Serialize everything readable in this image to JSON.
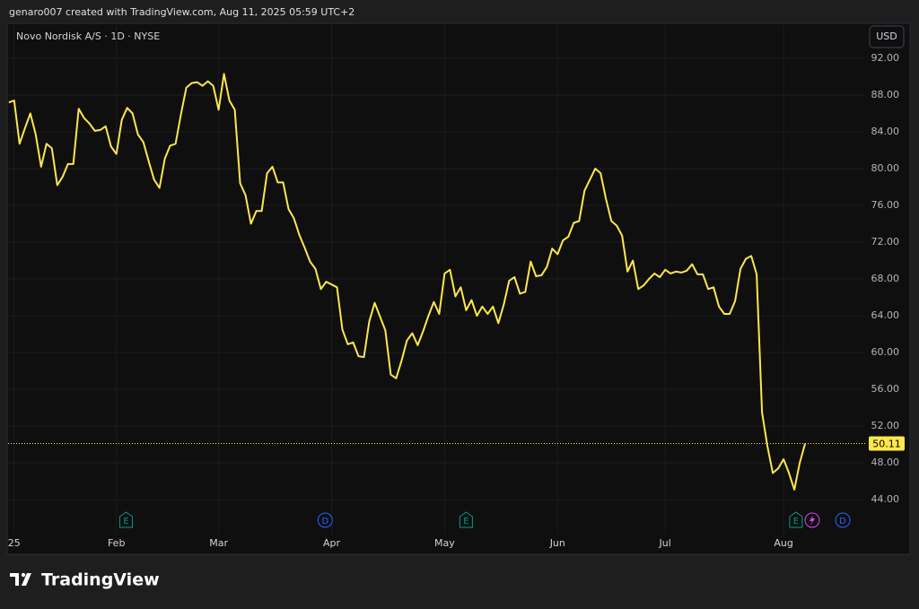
{
  "header": {
    "credit": "genaro007 created with TradingView.com, Aug 11, 2025 05:59 UTC+2"
  },
  "footer": {
    "brand": "TradingView"
  },
  "chart_data": {
    "type": "line",
    "title": "Novo Nordisk A/S · 1D · NYSE",
    "currency": "USD",
    "series": [
      {
        "color": "#fde74c",
        "values": [
          87.2,
          87.4,
          82.7,
          84.4,
          86.0,
          83.7,
          80.2,
          82.7,
          82.2,
          78.2,
          79.1,
          80.5,
          80.5,
          86.5,
          85.5,
          84.9,
          84.1,
          84.2,
          84.6,
          82.4,
          81.6,
          85.3,
          86.6,
          86.0,
          83.7,
          82.9,
          80.8,
          78.8,
          77.9,
          81.1,
          82.5,
          82.7,
          85.9,
          88.8,
          89.3,
          89.4,
          89.0,
          89.5,
          89.0,
          86.4,
          90.3,
          87.4,
          86.4,
          78.4,
          77.1,
          74.0,
          75.4,
          75.4,
          79.5,
          80.2,
          78.5,
          78.5,
          75.6,
          74.6,
          72.8,
          71.4,
          69.9,
          69.1,
          66.9,
          67.7,
          67.4,
          67.1,
          62.5,
          60.9,
          61.1,
          59.6,
          59.5,
          63.4,
          65.4,
          63.9,
          62.4,
          57.6,
          57.2,
          59.1,
          61.3,
          62.1,
          60.8,
          62.3,
          64.0,
          65.5,
          64.2,
          68.6,
          69.0,
          66.1,
          67.1,
          64.6,
          65.7,
          64.0,
          65.0,
          64.2,
          65.0,
          63.2,
          65.2,
          67.8,
          68.2,
          66.4,
          66.6,
          69.9,
          68.3,
          68.4,
          69.3,
          71.3,
          70.7,
          72.2,
          72.6,
          74.1,
          74.3,
          77.6,
          78.8,
          80.0,
          79.5,
          76.7,
          74.3,
          73.8,
          72.7,
          68.8,
          70.0,
          66.9,
          67.3,
          68.0,
          68.6,
          68.2,
          69.0,
          68.6,
          68.8,
          68.7,
          68.9,
          69.6,
          68.5,
          68.5,
          66.9,
          67.1,
          65.0,
          64.2,
          64.2,
          65.6,
          69.1,
          70.2,
          70.5,
          68.5,
          53.5,
          49.8,
          46.9,
          47.4,
          48.4,
          46.9,
          45.1,
          48.0,
          50.11
        ]
      }
    ],
    "xlim": [
      -0.3,
      159
    ],
    "xticks": [
      {
        "value": 1,
        "label": "25"
      },
      {
        "value": 20,
        "label": "Feb"
      },
      {
        "value": 39,
        "label": "Mar"
      },
      {
        "value": 60,
        "label": "Apr"
      },
      {
        "value": 81,
        "label": "May"
      },
      {
        "value": 102,
        "label": "Jun"
      },
      {
        "value": 122,
        "label": "Jul"
      },
      {
        "value": 144,
        "label": "Aug"
      }
    ],
    "ylim": [
      40.6,
      95.7
    ],
    "yticks": [
      {
        "value": 44,
        "label": "44.00"
      },
      {
        "value": 48,
        "label": "48.00"
      },
      {
        "value": 52,
        "label": "52.00"
      },
      {
        "value": 56,
        "label": "56.00"
      },
      {
        "value": 60,
        "label": "60.00"
      },
      {
        "value": 64,
        "label": "64.00"
      },
      {
        "value": 68,
        "label": "68.00"
      },
      {
        "value": 72,
        "label": "72.00"
      },
      {
        "value": 76,
        "label": "76.00"
      },
      {
        "value": 80,
        "label": "80.00"
      },
      {
        "value": 84,
        "label": "84.00"
      },
      {
        "value": 88,
        "label": "88.00"
      },
      {
        "value": 92,
        "label": "92.00"
      }
    ],
    "grid": true,
    "events": [
      {
        "label": "E",
        "at": 21.8,
        "color": "#089981"
      },
      {
        "label": "D",
        "at": 58.8,
        "color": "#2962ff"
      },
      {
        "label": "E",
        "at": 85,
        "color": "#089981"
      },
      {
        "label": "E",
        "at": 146.3,
        "color": "#089981"
      },
      {
        "label": "D",
        "at": 155,
        "color": "#2962ff"
      }
    ]
  }
}
